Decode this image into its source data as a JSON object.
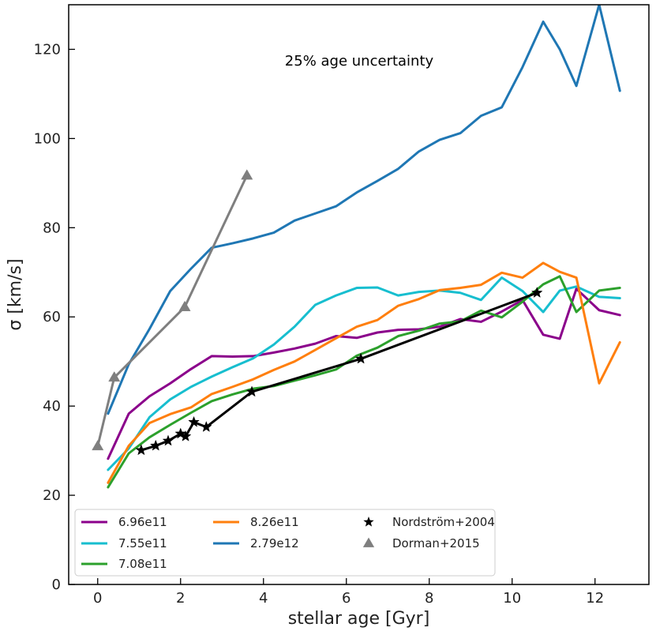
{
  "chart_data": {
    "type": "line",
    "title": "",
    "annotation": "25% age uncertainty",
    "xlabel": "stellar age [Gyr]",
    "ylabel": "σ [km/s]",
    "xlim": [
      -0.7,
      13.3
    ],
    "ylim": [
      0,
      130
    ],
    "xticks": [
      0,
      2,
      4,
      6,
      8,
      10,
      12
    ],
    "yticks": [
      0,
      20,
      40,
      60,
      80,
      100,
      120
    ],
    "grid": false,
    "legend_position": "bottom-left",
    "series": [
      {
        "name": "6.96e11",
        "color": "#8b008b",
        "marker": "none",
        "x": [
          0.25,
          0.75,
          1.25,
          1.75,
          2.25,
          2.75,
          3.25,
          3.75,
          4.25,
          4.75,
          5.25,
          5.75,
          6.25,
          6.75,
          7.25,
          7.75,
          8.25,
          8.75,
          9.25,
          9.75,
          10.25,
          10.75,
          11.15,
          11.55,
          12.1,
          12.6
        ],
        "y": [
          28.2,
          38.3,
          42.2,
          45.1,
          48.3,
          51.2,
          51.1,
          51.2,
          52.0,
          52.9,
          54.0,
          55.7,
          55.3,
          56.5,
          57.1,
          57.2,
          57.8,
          59.5,
          58.9,
          61.2,
          63.8,
          56.0,
          55.1,
          66.3,
          61.5,
          60.4
        ]
      },
      {
        "name": "7.55e11",
        "color": "#17becf",
        "marker": "none",
        "x": [
          0.25,
          0.75,
          1.25,
          1.75,
          2.25,
          2.75,
          3.25,
          3.75,
          4.25,
          4.75,
          5.25,
          5.75,
          6.25,
          6.75,
          7.25,
          7.75,
          8.25,
          8.75,
          9.25,
          9.75,
          10.25,
          10.75,
          11.15,
          11.55,
          12.1,
          12.6
        ],
        "y": [
          25.7,
          30.5,
          37.5,
          41.5,
          44.3,
          46.6,
          48.7,
          50.7,
          53.8,
          57.8,
          62.7,
          64.8,
          66.5,
          66.6,
          64.8,
          65.6,
          65.9,
          65.4,
          63.8,
          68.8,
          65.8,
          61.1,
          65.9,
          66.8,
          64.5,
          64.2
        ]
      },
      {
        "name": "7.08e11",
        "color": "#2ca02c",
        "marker": "none",
        "x": [
          0.25,
          0.75,
          1.25,
          1.75,
          2.25,
          2.75,
          3.25,
          3.75,
          4.25,
          4.75,
          5.25,
          5.75,
          6.25,
          6.75,
          7.25,
          7.75,
          8.25,
          8.75,
          9.25,
          9.75,
          10.25,
          10.75,
          11.15,
          11.55,
          12.1,
          12.6
        ],
        "y": [
          21.8,
          29.4,
          33.0,
          35.8,
          38.5,
          41.1,
          42.6,
          43.9,
          44.5,
          45.7,
          46.9,
          48.2,
          51.3,
          53.1,
          55.7,
          56.9,
          58.5,
          59.0,
          61.4,
          59.9,
          63.4,
          67.3,
          69.1,
          61.1,
          65.9,
          66.5
        ]
      },
      {
        "name": "8.26e11",
        "color": "#ff7f0e",
        "marker": "none",
        "x": [
          0.25,
          0.75,
          1.25,
          1.75,
          2.25,
          2.75,
          3.25,
          3.75,
          4.25,
          4.75,
          5.25,
          5.75,
          6.25,
          6.75,
          7.25,
          7.75,
          8.25,
          8.75,
          9.25,
          9.75,
          10.25,
          10.75,
          11.15,
          11.55,
          12.1,
          12.6
        ],
        "y": [
          22.8,
          31.1,
          36.2,
          38.2,
          39.7,
          42.7,
          44.3,
          46.0,
          48.1,
          50.0,
          52.6,
          55.2,
          57.8,
          59.3,
          62.5,
          64.0,
          66.0,
          66.5,
          67.2,
          69.9,
          68.8,
          72.1,
          70.1,
          68.8,
          45.1,
          54.3
        ]
      },
      {
        "name": "2.79e12",
        "color": "#1f77b4",
        "marker": "none",
        "x": [
          0.25,
          0.75,
          1.25,
          1.75,
          2.25,
          2.75,
          3.25,
          3.75,
          4.25,
          4.75,
          5.25,
          5.75,
          6.25,
          6.75,
          7.25,
          7.75,
          8.25,
          8.75,
          9.25,
          9.75,
          10.25,
          10.75,
          11.15,
          11.55,
          12.1,
          12.6
        ],
        "y": [
          38.3,
          49.4,
          57.3,
          65.8,
          70.8,
          75.5,
          76.5,
          77.6,
          78.9,
          81.6,
          83.2,
          84.8,
          87.9,
          90.5,
          93.2,
          97.1,
          99.7,
          101.2,
          105.1,
          107.0,
          116.0,
          126.2,
          120.0,
          111.8,
          130.0,
          110.7
        ]
      },
      {
        "name": "Nordström+2004",
        "color": "#000000",
        "marker": "star",
        "x": [
          1.05,
          1.4,
          1.7,
          2.0,
          2.12,
          2.32,
          2.62,
          3.72,
          6.35,
          10.6
        ],
        "y": [
          30.1,
          31.1,
          32.2,
          33.8,
          33.2,
          36.4,
          35.3,
          43.2,
          50.6,
          65.4
        ]
      },
      {
        "name": "Dorman+2015",
        "color": "#7f7f7f",
        "marker": "triangle",
        "x": [
          0.0,
          0.4,
          2.1,
          3.6
        ],
        "y": [
          31.0,
          46.4,
          62.2,
          91.7
        ]
      }
    ]
  }
}
